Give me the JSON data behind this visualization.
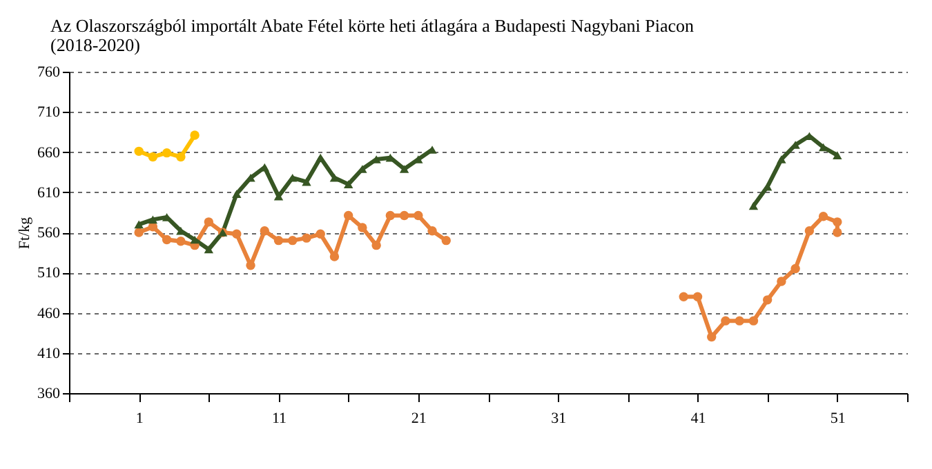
{
  "chart_data": {
    "type": "line",
    "title": "Az Olaszországból importált Abate Fétel körte heti átlagára a Budapesti Nagybani Piacon",
    "subtitle": "(2018-2020)",
    "ylabel": "Ft/kg",
    "xlim": [
      -4,
      56
    ],
    "xticks": [
      {
        "value": -4,
        "label": null
      },
      1,
      {
        "value": 6,
        "label": null
      },
      11,
      {
        "value": 16,
        "label": null
      },
      21,
      {
        "value": 26,
        "label": null
      },
      31,
      {
        "value": 36,
        "label": null
      },
      41,
      {
        "value": 46,
        "label": null
      },
      51,
      {
        "value": 56,
        "label": null
      }
    ],
    "ylim": [
      360,
      760
    ],
    "yticks": [
      360,
      410,
      460,
      510,
      560,
      610,
      660,
      710,
      760
    ],
    "grid": "y",
    "marker": "circle",
    "line_style": "solid",
    "series": [
      {
        "color": "#e8823a",
        "marker": "circle",
        "x": [
          1,
          2,
          3,
          4,
          5,
          6,
          7,
          8,
          9,
          10,
          11,
          12,
          13,
          14,
          15,
          16,
          17,
          18,
          19,
          20,
          21,
          22,
          23,
          24,
          40,
          41,
          42,
          43,
          44,
          45,
          46,
          47,
          48,
          49,
          50,
          51,
          51
        ],
        "values": [
          560,
          567,
          551,
          549,
          544,
          573,
          560,
          558,
          519,
          562,
          550,
          550,
          553,
          558,
          530,
          581,
          566,
          544,
          581,
          581,
          581,
          562,
          550,
          null,
          480,
          480,
          430,
          450,
          450,
          450,
          476,
          499,
          515,
          562,
          580,
          573,
          560
        ]
      },
      {
        "color": "#375623",
        "marker": "triangle",
        "x": [
          1,
          2,
          3,
          4,
          5,
          6,
          7,
          8,
          9,
          10,
          11,
          12,
          13,
          14,
          15,
          16,
          17,
          18,
          19,
          20,
          21,
          22,
          23,
          45,
          46,
          47,
          48,
          49,
          50,
          51
        ],
        "values": [
          570,
          576,
          579,
          562,
          551,
          539,
          560,
          608,
          628,
          641,
          605,
          628,
          623,
          653,
          628,
          620,
          639,
          651,
          653,
          639,
          651,
          663,
          null,
          593,
          617,
          651,
          669,
          680,
          666,
          656
        ]
      },
      {
        "color": "#ffc000",
        "marker": "circle",
        "x": [
          1,
          2,
          3,
          4,
          5
        ],
        "values": [
          661,
          654,
          659,
          654,
          681
        ]
      }
    ]
  }
}
